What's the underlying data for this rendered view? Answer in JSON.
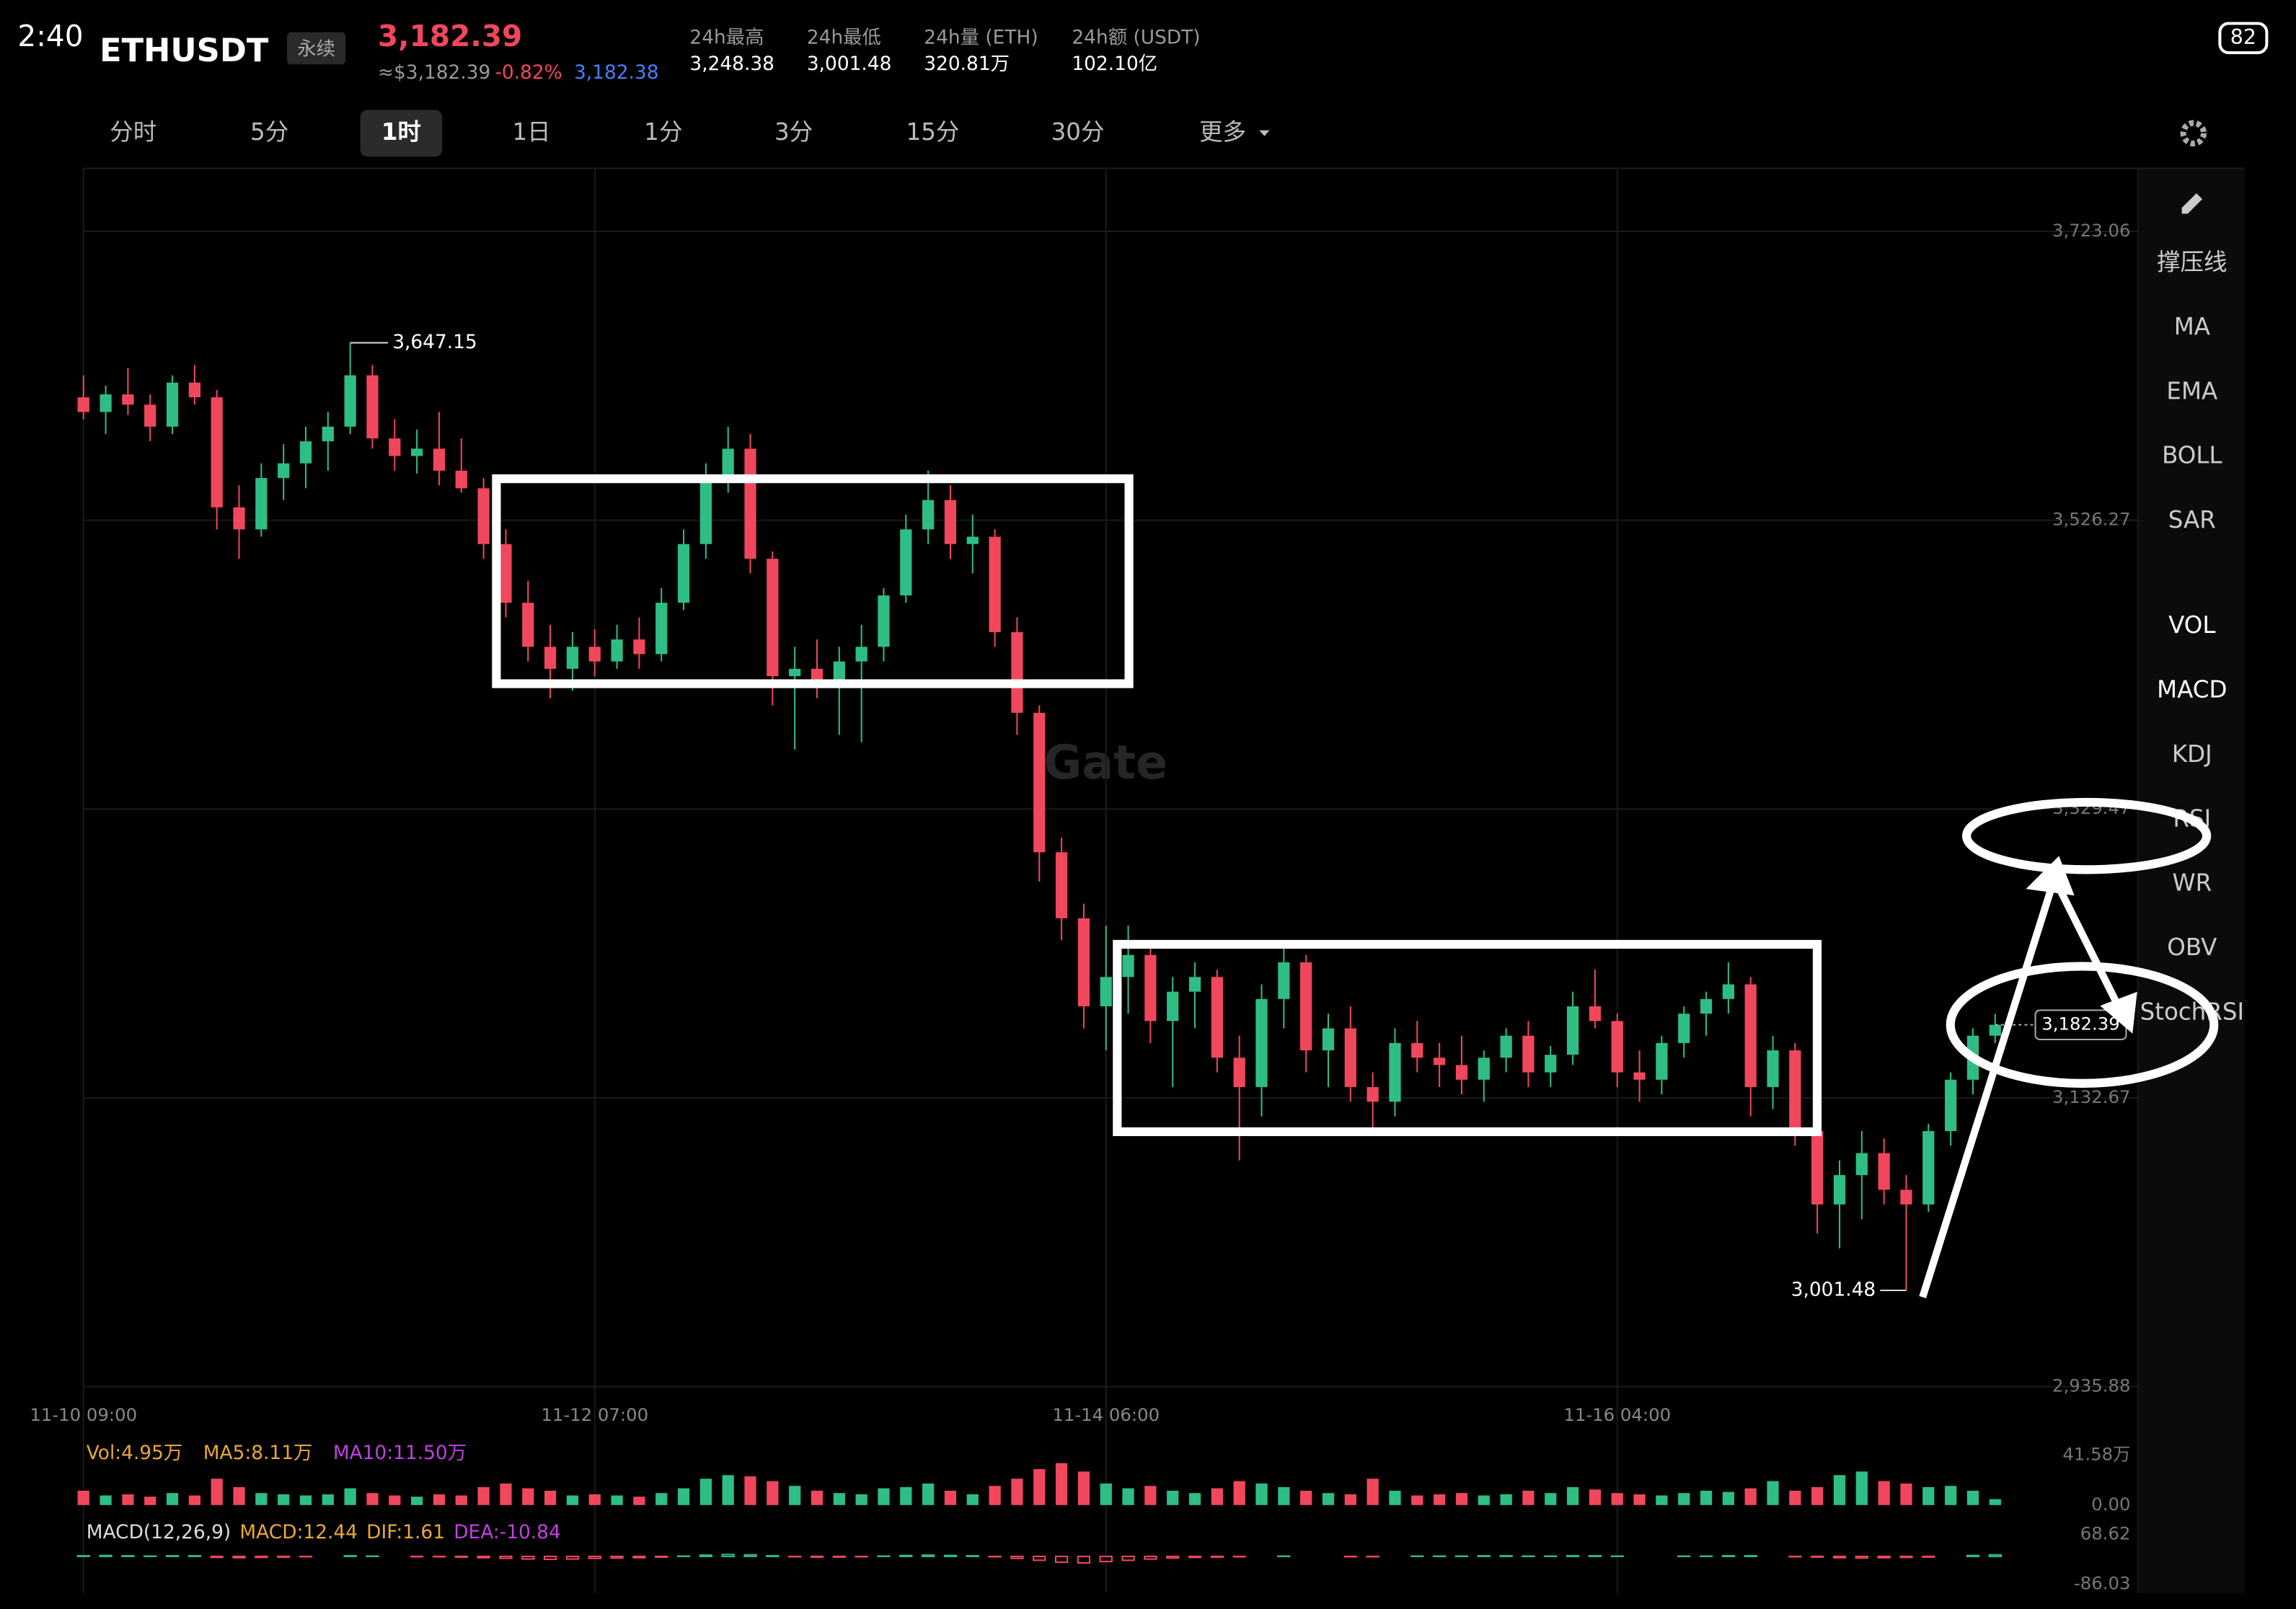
{
  "status_bar": {
    "time": "2:40",
    "battery": "82"
  },
  "header": {
    "symbol": "ETHUSDT",
    "contract": "永续",
    "price": "3,182.39",
    "usd_price": "≈$3,182.39",
    "change": "-0.82%",
    "index_price": "3,182.38",
    "stats": [
      {
        "label": "24h最高",
        "value": "3,248.38"
      },
      {
        "label": "24h最低",
        "value": "3,001.48"
      },
      {
        "label": "24h量 (ETH)",
        "value": "320.81万"
      },
      {
        "label": "24h额 (USDT)",
        "value": "102.10亿"
      }
    ]
  },
  "timeframes": [
    "分时",
    "5分",
    "1时",
    "1日",
    "1分",
    "3分",
    "15分",
    "30分",
    "更多"
  ],
  "indicators": [
    "撑压线",
    "MA",
    "EMA",
    "BOLL",
    "SAR",
    "VOL",
    "MACD",
    "KDJ",
    "RSI",
    "WR",
    "OBV",
    "StochRSI"
  ],
  "chart_data": {
    "type": "candlestick",
    "watermark": "Gate",
    "up_color": "#2ebd85",
    "down_color": "#f0475c",
    "xlim": [
      0,
      92.42
    ],
    "xticks": [
      {
        "value": 0,
        "label": "11-10 09:00"
      },
      {
        "value": 23,
        "label": "11-12 07:00"
      },
      {
        "value": 46,
        "label": "11-14 06:00"
      },
      {
        "value": 69,
        "label": "11-16 04:00"
      }
    ],
    "ylim": [
      2928,
      3766
    ],
    "yticks": [
      {
        "value": 3723.06,
        "label": "3,723.06"
      },
      {
        "value": 3526.27,
        "label": "3,526.27"
      },
      {
        "value": 3329.47,
        "label": "3,329.47"
      },
      {
        "value": 3132.67,
        "label": "3,132.67"
      },
      {
        "value": 2935.88,
        "label": "2,935.88"
      }
    ],
    "grid": true,
    "high_label": {
      "value": 3647.15,
      "label": "3,647.15"
    },
    "low_label": {
      "value": 3001.48,
      "label": "3,001.48"
    },
    "last_label": {
      "value": 3182.39,
      "label": "3,182.39"
    },
    "ohlc": [
      [
        3610,
        3625,
        3595,
        3600
      ],
      [
        3600,
        3618,
        3585,
        3612
      ],
      [
        3612,
        3630,
        3598,
        3605
      ],
      [
        3605,
        3612,
        3580,
        3590
      ],
      [
        3590,
        3625,
        3585,
        3620
      ],
      [
        3620,
        3632,
        3605,
        3610
      ],
      [
        3610,
        3615,
        3520,
        3535
      ],
      [
        3535,
        3550,
        3500,
        3520
      ],
      [
        3520,
        3565,
        3515,
        3555
      ],
      [
        3555,
        3578,
        3540,
        3565
      ],
      [
        3565,
        3590,
        3548,
        3580
      ],
      [
        3580,
        3600,
        3560,
        3590
      ],
      [
        3590,
        3647.15,
        3585,
        3625
      ],
      [
        3625,
        3632,
        3575,
        3582
      ],
      [
        3582,
        3595,
        3560,
        3570
      ],
      [
        3570,
        3588,
        3558,
        3575
      ],
      [
        3575,
        3600,
        3550,
        3560
      ],
      [
        3560,
        3582,
        3545,
        3548
      ],
      [
        3548,
        3555,
        3500,
        3510
      ],
      [
        3510,
        3520,
        3460,
        3470
      ],
      [
        3470,
        3485,
        3430,
        3440
      ],
      [
        3440,
        3455,
        3405,
        3425
      ],
      [
        3425,
        3450,
        3410,
        3440
      ],
      [
        3440,
        3452,
        3420,
        3430
      ],
      [
        3430,
        3455,
        3425,
        3445
      ],
      [
        3445,
        3460,
        3425,
        3435
      ],
      [
        3435,
        3480,
        3430,
        3470
      ],
      [
        3470,
        3520,
        3465,
        3510
      ],
      [
        3510,
        3565,
        3500,
        3555
      ],
      [
        3555,
        3590,
        3545,
        3575
      ],
      [
        3575,
        3585,
        3490,
        3500
      ],
      [
        3500,
        3505,
        3400,
        3420
      ],
      [
        3420,
        3440,
        3370,
        3425
      ],
      [
        3425,
        3445,
        3405,
        3415
      ],
      [
        3415,
        3440,
        3380,
        3430
      ],
      [
        3430,
        3455,
        3375,
        3440
      ],
      [
        3440,
        3480,
        3430,
        3475
      ],
      [
        3475,
        3530,
        3470,
        3520
      ],
      [
        3520,
        3560,
        3510,
        3540
      ],
      [
        3540,
        3550,
        3500,
        3510
      ],
      [
        3510,
        3530,
        3490,
        3515
      ],
      [
        3515,
        3520,
        3440,
        3450
      ],
      [
        3450,
        3460,
        3380,
        3395
      ],
      [
        3395,
        3400,
        3280,
        3300
      ],
      [
        3300,
        3310,
        3240,
        3255
      ],
      [
        3255,
        3265,
        3180,
        3195
      ],
      [
        3195,
        3250,
        3165,
        3215
      ],
      [
        3215,
        3250,
        3190,
        3230
      ],
      [
        3230,
        3240,
        3170,
        3185
      ],
      [
        3185,
        3215,
        3140,
        3205
      ],
      [
        3205,
        3225,
        3180,
        3215
      ],
      [
        3215,
        3220,
        3150,
        3160
      ],
      [
        3160,
        3175,
        3090,
        3140
      ],
      [
        3140,
        3210,
        3120,
        3200
      ],
      [
        3200,
        3235,
        3180,
        3225
      ],
      [
        3225,
        3230,
        3150,
        3165
      ],
      [
        3165,
        3190,
        3140,
        3180
      ],
      [
        3180,
        3195,
        3130,
        3140
      ],
      [
        3140,
        3150,
        3110,
        3130
      ],
      [
        3130,
        3180,
        3120,
        3170
      ],
      [
        3170,
        3185,
        3150,
        3160
      ],
      [
        3160,
        3170,
        3140,
        3155
      ],
      [
        3155,
        3175,
        3135,
        3145
      ],
      [
        3145,
        3165,
        3130,
        3160
      ],
      [
        3160,
        3180,
        3150,
        3175
      ],
      [
        3175,
        3185,
        3140,
        3150
      ],
      [
        3150,
        3168,
        3140,
        3162
      ],
      [
        3162,
        3205,
        3155,
        3195
      ],
      [
        3195,
        3220,
        3180,
        3185
      ],
      [
        3185,
        3190,
        3140,
        3150
      ],
      [
        3150,
        3165,
        3130,
        3145
      ],
      [
        3145,
        3175,
        3135,
        3170
      ],
      [
        3170,
        3195,
        3160,
        3190
      ],
      [
        3190,
        3205,
        3175,
        3200
      ],
      [
        3200,
        3225,
        3190,
        3210
      ],
      [
        3210,
        3215,
        3120,
        3140
      ],
      [
        3140,
        3175,
        3125,
        3165
      ],
      [
        3165,
        3170,
        3100,
        3110
      ],
      [
        3110,
        3115,
        3040,
        3060
      ],
      [
        3060,
        3090,
        3030,
        3080
      ],
      [
        3080,
        3110,
        3050,
        3095
      ],
      [
        3095,
        3105,
        3060,
        3070
      ],
      [
        3070,
        3080,
        3001.48,
        3060
      ],
      [
        3060,
        3115,
        3055,
        3110
      ],
      [
        3110,
        3150,
        3100,
        3145
      ],
      [
        3145,
        3180,
        3135,
        3175
      ],
      [
        3175,
        3190,
        3170,
        3182.39
      ]
    ],
    "volume": {
      "legend": [
        {
          "text": "Vol:4.95万",
          "color": "#e8a838"
        },
        {
          "text": "MA5:8.11万",
          "color": "#e8a838"
        },
        {
          "text": "MA10:11.50万",
          "color": "#c040e0"
        }
      ],
      "ylim": [
        0,
        41.58
      ],
      "yticks": [
        {
          "value": 41.58,
          "label": "41.58万"
        },
        {
          "value": 0,
          "label": "0.00"
        }
      ],
      "values": [
        12,
        8,
        9,
        7,
        10,
        8,
        22,
        15,
        10,
        9,
        8,
        9,
        14,
        10,
        8,
        7,
        9,
        8,
        15,
        18,
        14,
        12,
        8,
        9,
        8,
        7,
        10,
        14,
        22,
        25,
        24,
        20,
        16,
        12,
        10,
        9,
        14,
        15,
        18,
        12,
        9,
        16,
        22,
        30,
        35,
        28,
        18,
        14,
        16,
        12,
        10,
        14,
        20,
        18,
        15,
        12,
        10,
        9,
        22,
        12,
        8,
        9,
        10,
        8,
        9,
        12,
        10,
        15,
        13,
        10,
        9,
        8,
        10,
        12,
        11,
        14,
        20,
        12,
        15,
        25,
        28,
        20,
        18,
        15,
        16,
        12,
        4.95
      ]
    },
    "macd": {
      "legend": [
        {
          "text": "MACD(12,26,9)",
          "color": "#dddddd"
        },
        {
          "text": "MACD:12.44",
          "color": "#e8a838"
        },
        {
          "text": "DIF:1.61",
          "color": "#e8a838"
        },
        {
          "text": "DEA:-10.84",
          "color": "#c040e0"
        }
      ],
      "ylim": [
        -86.03,
        68.62
      ],
      "yticks": [
        68.62,
        -86.03
      ],
      "values": [
        2,
        3,
        2,
        1,
        2,
        2,
        -3,
        -4,
        -3,
        -2,
        -1,
        0,
        2,
        1,
        0,
        -1,
        -1,
        -2,
        -4,
        -6,
        -8,
        -9,
        -8,
        -6,
        -5,
        -4,
        -2,
        1,
        4,
        6,
        5,
        2,
        -1,
        -2,
        -2,
        -1,
        1,
        3,
        4,
        3,
        2,
        -1,
        -6,
        -12,
        -18,
        -20,
        -16,
        -12,
        -8,
        -5,
        -3,
        -2,
        -1,
        0,
        1,
        0,
        0,
        -1,
        -1,
        0,
        1,
        1,
        1,
        2,
        2,
        1,
        1,
        2,
        2,
        1,
        0,
        0,
        1,
        1,
        2,
        2,
        0,
        -1,
        -2,
        -4,
        -5,
        -4,
        -3,
        -2,
        0,
        3,
        5
      ]
    }
  }
}
